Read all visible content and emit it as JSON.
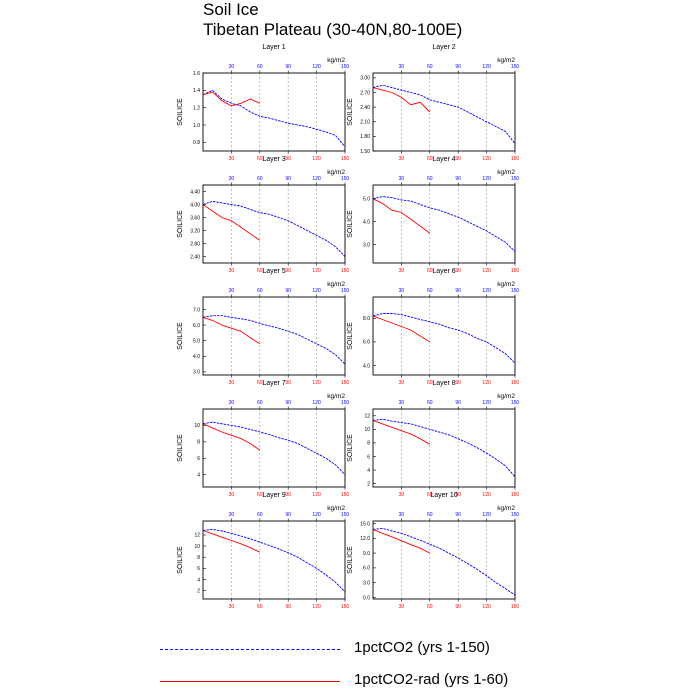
{
  "header": {
    "title": "Soil Ice",
    "subtitle": "Tibetan Plateau (30-40N,80-100E)"
  },
  "legend": {
    "items": [
      {
        "label": "1pctCO2 (yrs 1-150)",
        "color": "#0000ff",
        "style": "dashed"
      },
      {
        "label": "1pctCO2-rad (yrs 1-60)",
        "color": "#ff0000",
        "style": "solid"
      }
    ]
  },
  "chart_data": [
    {
      "type": "line",
      "title": "Layer 1",
      "ylabel": "SOILICE",
      "units": "kg/m2",
      "xlim": [
        0,
        150
      ],
      "ylim": [
        0.7,
        1.6
      ],
      "yticks": [
        "0.8",
        "1.0",
        "1.2",
        "1.4",
        "1.6"
      ],
      "x_bottom_ticks": [
        "30",
        "60",
        "90",
        "120",
        "150"
      ],
      "x_top_ticks": [
        "30",
        "60",
        "90",
        "120",
        "150"
      ],
      "series": [
        {
          "color": "#0000ff",
          "x": [
            0,
            10,
            20,
            30,
            40,
            50,
            60,
            70,
            80,
            90,
            100,
            110,
            120,
            130,
            140,
            150
          ],
          "values": [
            1.35,
            1.4,
            1.3,
            1.25,
            1.22,
            1.15,
            1.1,
            1.08,
            1.05,
            1.02,
            1.0,
            0.98,
            0.95,
            0.92,
            0.88,
            0.75
          ]
        },
        {
          "color": "#ff0000",
          "x": [
            0,
            10,
            20,
            30,
            40,
            50,
            60
          ],
          "values": [
            1.35,
            1.38,
            1.28,
            1.22,
            1.25,
            1.3,
            1.25
          ]
        }
      ]
    },
    {
      "type": "line",
      "title": "Layer 2",
      "ylabel": "SOILICE",
      "units": "kg/m2",
      "xlim": [
        0,
        150
      ],
      "ylim": [
        1.5,
        3.1
      ],
      "yticks": [
        "1.50",
        "1.80",
        "2.10",
        "2.40",
        "2.70",
        "3.00"
      ],
      "x_bottom_ticks": [
        "30",
        "60",
        "90",
        "120",
        "150"
      ],
      "x_top_ticks": [
        "30",
        "60",
        "90",
        "120",
        "150"
      ],
      "series": [
        {
          "color": "#0000ff",
          "x": [
            0,
            10,
            20,
            30,
            40,
            50,
            60,
            70,
            80,
            90,
            100,
            110,
            120,
            130,
            140,
            150
          ],
          "values": [
            2.8,
            2.85,
            2.8,
            2.75,
            2.7,
            2.65,
            2.55,
            2.5,
            2.45,
            2.4,
            2.3,
            2.2,
            2.1,
            2.0,
            1.9,
            1.65
          ]
        },
        {
          "color": "#ff0000",
          "x": [
            0,
            10,
            20,
            30,
            40,
            50,
            60
          ],
          "values": [
            2.8,
            2.75,
            2.7,
            2.6,
            2.45,
            2.5,
            2.3
          ]
        }
      ]
    },
    {
      "type": "line",
      "title": "Layer 3",
      "ylabel": "SOILICE",
      "units": "kg/m2",
      "xlim": [
        0,
        150
      ],
      "ylim": [
        2.2,
        4.6
      ],
      "yticks": [
        "2.40",
        "2.80",
        "3.20",
        "3.60",
        "4.00",
        "4.40"
      ],
      "x_bottom_ticks": [
        "30",
        "60",
        "90",
        "120",
        "150"
      ],
      "x_top_ticks": [
        "30",
        "60",
        "90",
        "120",
        "150"
      ],
      "series": [
        {
          "color": "#0000ff",
          "x": [
            0,
            10,
            20,
            30,
            40,
            50,
            60,
            70,
            80,
            90,
            100,
            110,
            120,
            130,
            140,
            150
          ],
          "values": [
            4.0,
            4.1,
            4.05,
            4.0,
            3.95,
            3.85,
            3.75,
            3.7,
            3.6,
            3.5,
            3.35,
            3.2,
            3.05,
            2.9,
            2.7,
            2.4
          ]
        },
        {
          "color": "#ff0000",
          "x": [
            0,
            10,
            20,
            30,
            40,
            50,
            60
          ],
          "values": [
            4.0,
            3.8,
            3.6,
            3.5,
            3.3,
            3.1,
            2.9
          ]
        }
      ]
    },
    {
      "type": "line",
      "title": "Layer 4",
      "ylabel": "SOILICE",
      "units": "kg/m2",
      "xlim": [
        0,
        150
      ],
      "ylim": [
        2.2,
        5.6
      ],
      "yticks": [
        "3.0",
        "4.0",
        "5.0"
      ],
      "x_bottom_ticks": [
        "30",
        "60",
        "90",
        "120",
        "150"
      ],
      "x_top_ticks": [
        "30",
        "60",
        "90",
        "120",
        "150"
      ],
      "series": [
        {
          "color": "#0000ff",
          "x": [
            0,
            10,
            20,
            30,
            40,
            50,
            60,
            70,
            80,
            90,
            100,
            110,
            120,
            130,
            140,
            150
          ],
          "values": [
            5.0,
            5.1,
            5.05,
            4.95,
            4.9,
            4.75,
            4.6,
            4.5,
            4.35,
            4.2,
            4.0,
            3.8,
            3.6,
            3.35,
            3.1,
            2.7
          ]
        },
        {
          "color": "#ff0000",
          "x": [
            0,
            10,
            20,
            30,
            40,
            50,
            60
          ],
          "values": [
            5.0,
            4.8,
            4.5,
            4.4,
            4.1,
            3.8,
            3.5
          ]
        }
      ]
    },
    {
      "type": "line",
      "title": "Layer 5",
      "ylabel": "SOILICE",
      "units": "kg/m2",
      "xlim": [
        0,
        150
      ],
      "ylim": [
        2.8,
        7.8
      ],
      "yticks": [
        "3.0",
        "4.0",
        "5.0",
        "6.0",
        "7.0"
      ],
      "x_bottom_ticks": [
        "30",
        "60",
        "90",
        "120",
        "150"
      ],
      "x_top_ticks": [
        "30",
        "60",
        "90",
        "120",
        "150"
      ],
      "series": [
        {
          "color": "#0000ff",
          "x": [
            0,
            10,
            20,
            30,
            40,
            50,
            60,
            70,
            80,
            90,
            100,
            110,
            120,
            130,
            140,
            150
          ],
          "values": [
            6.5,
            6.6,
            6.6,
            6.5,
            6.4,
            6.3,
            6.1,
            5.95,
            5.8,
            5.6,
            5.4,
            5.1,
            4.8,
            4.5,
            4.1,
            3.5
          ]
        },
        {
          "color": "#ff0000",
          "x": [
            0,
            10,
            20,
            30,
            40,
            50,
            60
          ],
          "values": [
            6.5,
            6.3,
            6.0,
            5.8,
            5.6,
            5.2,
            4.8
          ]
        }
      ]
    },
    {
      "type": "line",
      "title": "Layer 6",
      "ylabel": "SOILICE",
      "units": "kg/m2",
      "xlim": [
        0,
        150
      ],
      "ylim": [
        3.2,
        9.8
      ],
      "yticks": [
        "4.0",
        "6.0",
        "8.0"
      ],
      "x_bottom_ticks": [
        "30",
        "60",
        "90",
        "120",
        "150"
      ],
      "x_top_ticks": [
        "30",
        "60",
        "90",
        "120",
        "150"
      ],
      "series": [
        {
          "color": "#0000ff",
          "x": [
            0,
            10,
            20,
            30,
            40,
            50,
            60,
            70,
            80,
            90,
            100,
            110,
            120,
            130,
            140,
            150
          ],
          "values": [
            8.2,
            8.4,
            8.4,
            8.3,
            8.1,
            7.9,
            7.7,
            7.5,
            7.2,
            7.0,
            6.7,
            6.3,
            6.0,
            5.5,
            5.0,
            4.2
          ]
        },
        {
          "color": "#ff0000",
          "x": [
            0,
            10,
            20,
            30,
            40,
            50,
            60
          ],
          "values": [
            8.2,
            7.9,
            7.6,
            7.3,
            7.0,
            6.5,
            6.0
          ]
        }
      ]
    },
    {
      "type": "line",
      "title": "Layer 7",
      "ylabel": "SOILICE",
      "units": "kg/m2",
      "xlim": [
        0,
        150
      ],
      "ylim": [
        2.5,
        12
      ],
      "yticks": [
        "4",
        "6",
        "8",
        "10"
      ],
      "x_bottom_ticks": [
        "30",
        "60",
        "90",
        "120",
        "150"
      ],
      "x_top_ticks": [
        "30",
        "60",
        "90",
        "120",
        "150"
      ],
      "series": [
        {
          "color": "#0000ff",
          "x": [
            0,
            10,
            20,
            30,
            40,
            50,
            60,
            70,
            80,
            90,
            100,
            110,
            120,
            130,
            140,
            150
          ],
          "values": [
            10.2,
            10.4,
            10.2,
            10.0,
            9.8,
            9.5,
            9.2,
            8.9,
            8.5,
            8.2,
            7.8,
            7.2,
            6.6,
            6.0,
            5.2,
            4.0
          ]
        },
        {
          "color": "#ff0000",
          "x": [
            0,
            10,
            20,
            30,
            40,
            50,
            60
          ],
          "values": [
            10.2,
            9.7,
            9.2,
            8.8,
            8.4,
            7.8,
            7.0
          ]
        }
      ]
    },
    {
      "type": "line",
      "title": "Layer 8",
      "ylabel": "SOILICE",
      "units": "kg/m2",
      "xlim": [
        0,
        150
      ],
      "ylim": [
        1.5,
        13
      ],
      "yticks": [
        "2",
        "4",
        "6",
        "8",
        "10",
        "12"
      ],
      "x_bottom_ticks": [
        "30",
        "60",
        "90",
        "120",
        "150"
      ],
      "x_top_ticks": [
        "30",
        "60",
        "90",
        "120",
        "150"
      ],
      "series": [
        {
          "color": "#0000ff",
          "x": [
            0,
            10,
            20,
            30,
            40,
            50,
            60,
            70,
            80,
            90,
            100,
            110,
            120,
            130,
            140,
            150
          ],
          "values": [
            11.3,
            11.5,
            11.2,
            11.0,
            10.8,
            10.4,
            10.0,
            9.6,
            9.2,
            8.6,
            8.0,
            7.3,
            6.5,
            5.6,
            4.6,
            3.0
          ]
        },
        {
          "color": "#ff0000",
          "x": [
            0,
            10,
            20,
            30,
            40,
            50,
            60
          ],
          "values": [
            11.3,
            10.8,
            10.3,
            9.8,
            9.3,
            8.6,
            7.8
          ]
        }
      ]
    },
    {
      "type": "line",
      "title": "Layer 9",
      "ylabel": "SOILICE",
      "units": "kg/m2",
      "xlim": [
        0,
        150
      ],
      "ylim": [
        0.5,
        14.5
      ],
      "yticks": [
        "2",
        "4",
        "6",
        "8",
        "10",
        "12"
      ],
      "x_bottom_ticks": [
        "30",
        "60",
        "90",
        "120",
        "150"
      ],
      "x_top_ticks": [
        "30",
        "60",
        "90",
        "120",
        "150"
      ],
      "series": [
        {
          "color": "#0000ff",
          "x": [
            0,
            10,
            20,
            30,
            40,
            50,
            60,
            70,
            80,
            90,
            100,
            110,
            120,
            130,
            140,
            150
          ],
          "values": [
            12.8,
            13.0,
            12.7,
            12.3,
            11.8,
            11.3,
            10.7,
            10.1,
            9.5,
            8.8,
            8.0,
            7.0,
            6.0,
            4.8,
            3.5,
            1.8
          ]
        },
        {
          "color": "#ff0000",
          "x": [
            0,
            10,
            20,
            30,
            40,
            50,
            60
          ],
          "values": [
            12.8,
            12.2,
            11.6,
            11.0,
            10.4,
            9.7,
            8.9
          ]
        }
      ]
    },
    {
      "type": "line",
      "title": "Layer 10",
      "ylabel": "SOILICE",
      "units": "kg/m2",
      "xlim": [
        0,
        150
      ],
      "ylim": [
        -0.3,
        15.5
      ],
      "yticks": [
        "0.0",
        "3.0",
        "6.0",
        "9.0",
        "12.0",
        "15.0"
      ],
      "x_bottom_ticks": [
        "30",
        "60",
        "90",
        "120",
        "150"
      ],
      "x_top_ticks": [
        "30",
        "60",
        "90",
        "120",
        "150"
      ],
      "series": [
        {
          "color": "#0000ff",
          "x": [
            0,
            10,
            20,
            30,
            40,
            50,
            60,
            70,
            80,
            90,
            100,
            110,
            120,
            130,
            140,
            150
          ],
          "values": [
            13.8,
            14.0,
            13.5,
            13.0,
            12.3,
            11.6,
            10.8,
            10.0,
            9.0,
            8.0,
            6.9,
            5.7,
            4.4,
            3.0,
            1.8,
            0.5
          ]
        },
        {
          "color": "#ff0000",
          "x": [
            0,
            10,
            20,
            30,
            40,
            50,
            60
          ],
          "values": [
            13.8,
            13.0,
            12.3,
            11.5,
            10.7,
            10.0,
            9.0
          ]
        }
      ]
    }
  ]
}
